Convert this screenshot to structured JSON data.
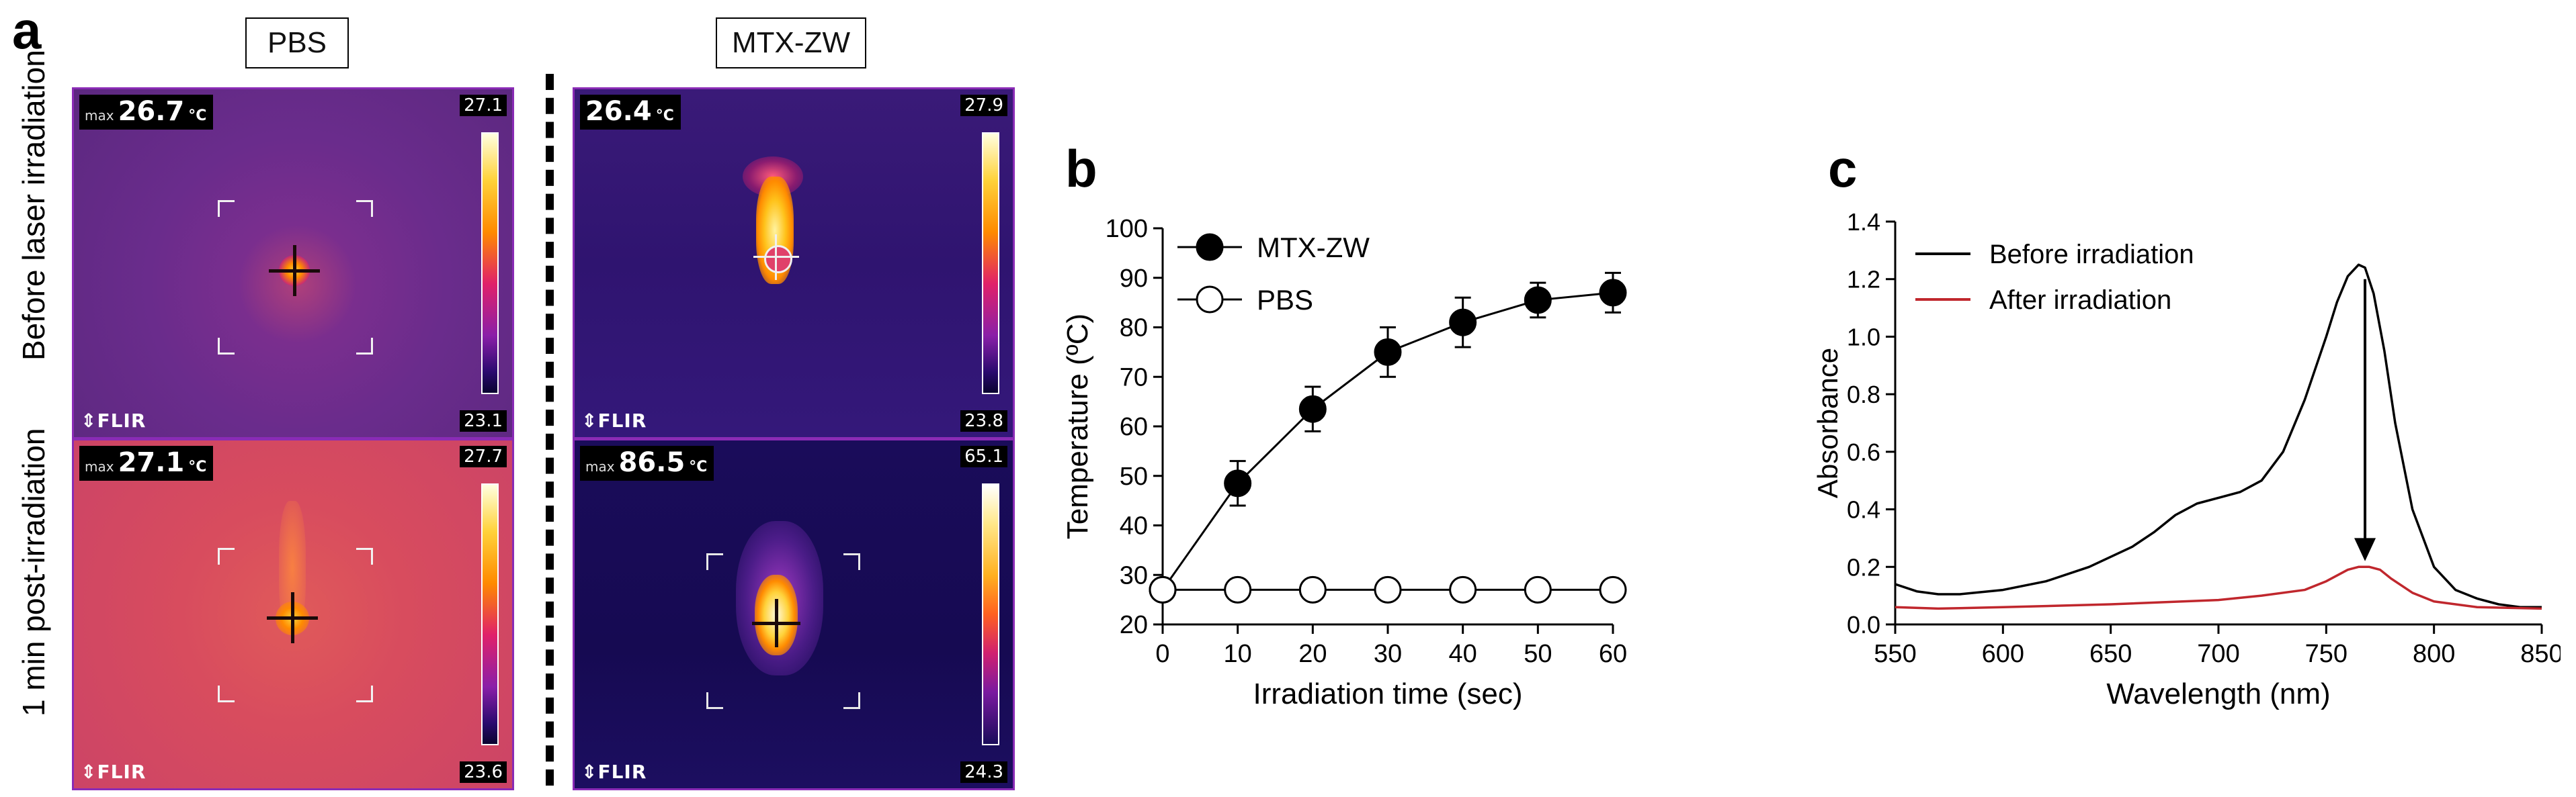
{
  "panels": {
    "a": {
      "letter": "a",
      "columns": [
        "PBS",
        "MTX-ZW"
      ],
      "rows": [
        "Before laser irradiation",
        "1 min post-irradiation"
      ],
      "images": [
        {
          "max_label": "max",
          "max_value": "26.7",
          "unit": "°C",
          "scale_high": "27.1",
          "scale_low": "23.1",
          "brand": "⇕FLIR"
        },
        {
          "max_label": "",
          "max_value": "26.4",
          "unit": "°C",
          "scale_high": "27.9",
          "scale_low": "23.8",
          "brand": "⇕FLIR"
        },
        {
          "max_label": "max",
          "max_value": "27.1",
          "unit": "°C",
          "scale_high": "27.7",
          "scale_low": "23.6",
          "brand": "⇕FLIR"
        },
        {
          "max_label": "max",
          "max_value": "86.5",
          "unit": "°C",
          "scale_high": "65.1",
          "scale_low": "24.3",
          "brand": "⇕FLIR"
        }
      ]
    },
    "b": {
      "letter": "b"
    },
    "c": {
      "letter": "c"
    }
  },
  "chart_data": [
    {
      "id": "b",
      "type": "line",
      "xlabel": "Irradiation time (sec)",
      "ylabel": "Temperature (ºC)",
      "xlim": [
        0,
        60
      ],
      "ylim": [
        20,
        100
      ],
      "xticks": [
        0,
        10,
        20,
        30,
        40,
        50,
        60
      ],
      "yticks": [
        20,
        30,
        40,
        50,
        60,
        70,
        80,
        90,
        100
      ],
      "legend_position": "top-left",
      "series": [
        {
          "name": "MTX-ZW",
          "marker": "filled-circle",
          "x": [
            0,
            10,
            20,
            30,
            40,
            50,
            60
          ],
          "values": [
            27,
            48.5,
            63.5,
            75,
            81,
            85.5,
            87
          ],
          "errors": [
            1,
            4.5,
            4.5,
            5,
            5,
            3.5,
            4
          ]
        },
        {
          "name": "PBS",
          "marker": "open-circle",
          "x": [
            0,
            10,
            20,
            30,
            40,
            50,
            60
          ],
          "values": [
            27,
            27,
            27,
            27,
            27,
            27,
            27
          ],
          "errors": [
            0,
            0,
            0,
            0,
            0,
            0,
            0
          ]
        }
      ]
    },
    {
      "id": "c",
      "type": "line",
      "xlabel": "Wavelength (nm)",
      "ylabel": "Absorbance",
      "xlim": [
        550,
        850
      ],
      "ylim": [
        0,
        1.4
      ],
      "xticks": [
        550,
        600,
        650,
        700,
        750,
        800,
        850
      ],
      "yticks": [
        0.0,
        0.2,
        0.4,
        0.6,
        0.8,
        1.0,
        1.2,
        1.4
      ],
      "ytick_labels": [
        "0.0",
        "0.2",
        "0.4",
        "0.6",
        "0.8",
        "1.0",
        "1.2",
        "1.4"
      ],
      "legend_position": "top-left",
      "annotation": "downward arrow at 768 nm from 1.20 to 0.22",
      "series": [
        {
          "name": "Before irradiation",
          "color": "#000000",
          "x": [
            550,
            560,
            570,
            580,
            600,
            620,
            640,
            660,
            670,
            680,
            690,
            700,
            710,
            720,
            730,
            740,
            750,
            755,
            760,
            765,
            768,
            772,
            777,
            782,
            790,
            800,
            810,
            820,
            830,
            840,
            850
          ],
          "values": [
            0.14,
            0.115,
            0.105,
            0.105,
            0.12,
            0.15,
            0.2,
            0.27,
            0.32,
            0.38,
            0.42,
            0.44,
            0.46,
            0.5,
            0.6,
            0.78,
            1.0,
            1.12,
            1.21,
            1.25,
            1.24,
            1.15,
            0.95,
            0.7,
            0.4,
            0.2,
            0.12,
            0.09,
            0.07,
            0.06,
            0.06
          ]
        },
        {
          "name": "After irradiation",
          "color": "#c0272d",
          "x": [
            550,
            570,
            600,
            650,
            700,
            720,
            740,
            750,
            760,
            765,
            770,
            775,
            780,
            790,
            800,
            820,
            850
          ],
          "values": [
            0.06,
            0.055,
            0.06,
            0.07,
            0.085,
            0.1,
            0.12,
            0.15,
            0.19,
            0.2,
            0.2,
            0.19,
            0.16,
            0.11,
            0.08,
            0.06,
            0.055
          ]
        }
      ]
    }
  ]
}
